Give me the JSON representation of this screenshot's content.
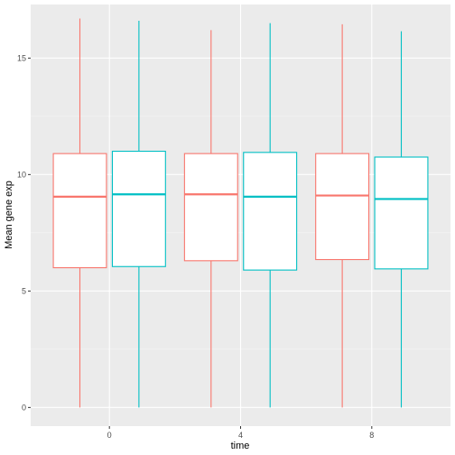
{
  "chart_data": {
    "type": "boxplot",
    "xlabel": "time",
    "ylabel": "Mean gene exp",
    "categories": [
      "0",
      "4",
      "8"
    ],
    "ylim": [
      -0.8,
      17.3
    ],
    "yticks": [
      0,
      5,
      10,
      15
    ],
    "grid": true,
    "legend": "none",
    "series": [
      {
        "color": "#F8766D",
        "boxes": [
          {
            "min": 0.0,
            "q1": 6.0,
            "median": 9.05,
            "q3": 10.9,
            "max": 16.7
          },
          {
            "min": 0.0,
            "q1": 6.3,
            "median": 9.15,
            "q3": 10.9,
            "max": 16.2
          },
          {
            "min": 0.0,
            "q1": 6.35,
            "median": 9.1,
            "q3": 10.9,
            "max": 16.45
          }
        ]
      },
      {
        "color": "#00BFC4",
        "boxes": [
          {
            "min": 0.0,
            "q1": 6.05,
            "median": 9.15,
            "q3": 11.0,
            "max": 16.6
          },
          {
            "min": 0.0,
            "q1": 5.9,
            "median": 9.05,
            "q3": 10.95,
            "max": 16.5
          },
          {
            "min": 0.0,
            "q1": 5.95,
            "median": 8.95,
            "q3": 10.75,
            "max": 16.15
          }
        ]
      }
    ]
  }
}
